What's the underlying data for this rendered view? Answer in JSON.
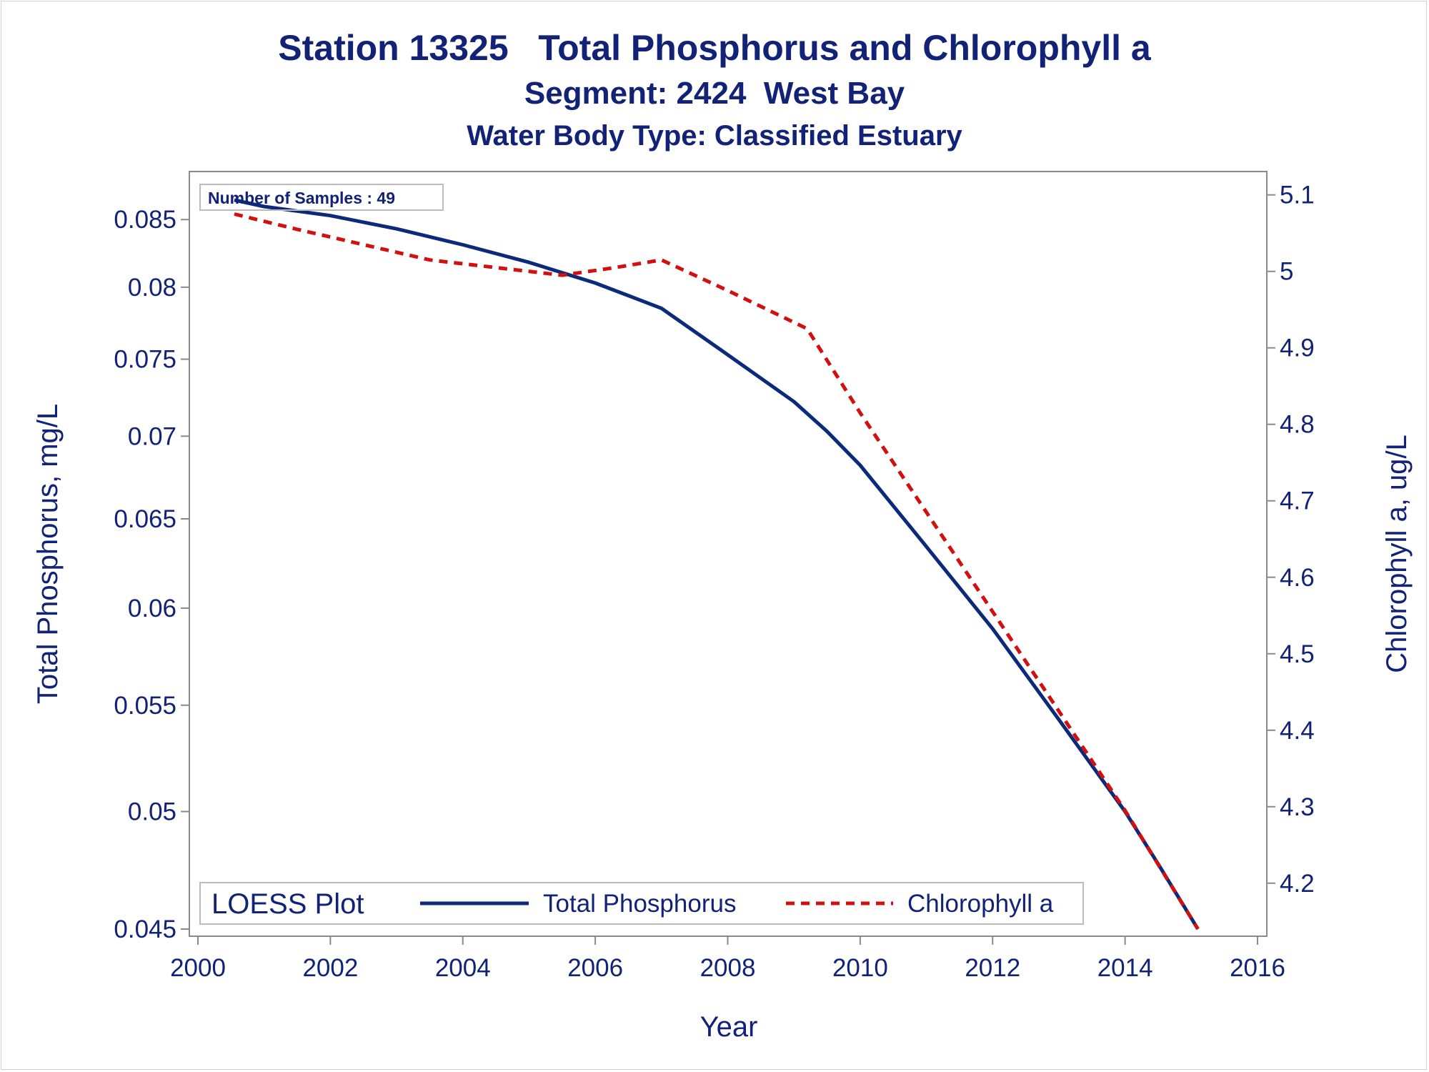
{
  "titles": {
    "line1": "Station 13325   Total Phosphorus and Chlorophyll a",
    "line2": "Segment: 2424  West Bay",
    "line3": "Water Body Type: Classified Estuary"
  },
  "inset_text": "Number of Samples : 49",
  "legend": {
    "title": "LOESS Plot",
    "items": [
      "Total Phosphorus",
      "Chlorophyll a"
    ]
  },
  "colors": {
    "text": "#112277",
    "phosphorus": "#0b2a7a",
    "chlorophyll": "#d11010",
    "axis": "#8a8a8a"
  },
  "chart_data": {
    "type": "line",
    "xlabel": "Year",
    "ylabel": "Total Phosphorus, mg/L",
    "y2label": "Chlorophyll a, ug/L",
    "xlim": [
      2000,
      2016
    ],
    "ylim": [
      0.045,
      0.0875
    ],
    "y2lim": [
      4.14,
      5.11
    ],
    "y_scale": "log",
    "x_ticks": [
      "2000",
      "2002",
      "2004",
      "2006",
      "2008",
      "2010",
      "2012",
      "2014",
      "2016"
    ],
    "y_ticks": [
      "0.045",
      "0.05",
      "0.055",
      "0.06",
      "0.065",
      "0.07",
      "0.075",
      "0.08",
      "0.085"
    ],
    "y2_ticks": [
      "4.2",
      "4.3",
      "4.4",
      "4.5",
      "4.6",
      "4.7",
      "4.8",
      "4.9",
      "5",
      "5.1"
    ],
    "legend_position": "bottom",
    "series": [
      {
        "name": "Total Phosphorus",
        "axis": "left",
        "style": "solid",
        "x": [
          2000.55,
          2001.0,
          2002.0,
          2003.0,
          2004.0,
          2005.0,
          2006.0,
          2007.0,
          2008.0,
          2009.0,
          2009.5,
          2010.0,
          2011.0,
          2012.0,
          2013.0,
          2014.0,
          2014.5,
          2015.1
        ],
        "y": [
          0.0865,
          0.086,
          0.0853,
          0.0843,
          0.0831,
          0.0818,
          0.0803,
          0.0785,
          0.0753,
          0.0722,
          0.0703,
          0.0682,
          0.0634,
          0.0589,
          0.0543,
          0.05,
          0.0477,
          0.045
        ]
      },
      {
        "name": "Chlorophyll a",
        "axis": "right",
        "style": "dashed",
        "x": [
          2000.55,
          2001.5,
          2002.5,
          2003.5,
          2004.5,
          2005.5,
          2006.3,
          2007.0,
          2008.0,
          2009.2,
          2010.0,
          2011.0,
          2012.0,
          2013.0,
          2014.0,
          2015.1
        ],
        "y": [
          5.075,
          5.055,
          5.035,
          5.015,
          5.005,
          4.995,
          5.005,
          5.015,
          4.975,
          4.925,
          4.815,
          4.685,
          4.555,
          4.425,
          4.295,
          4.14
        ]
      }
    ]
  }
}
